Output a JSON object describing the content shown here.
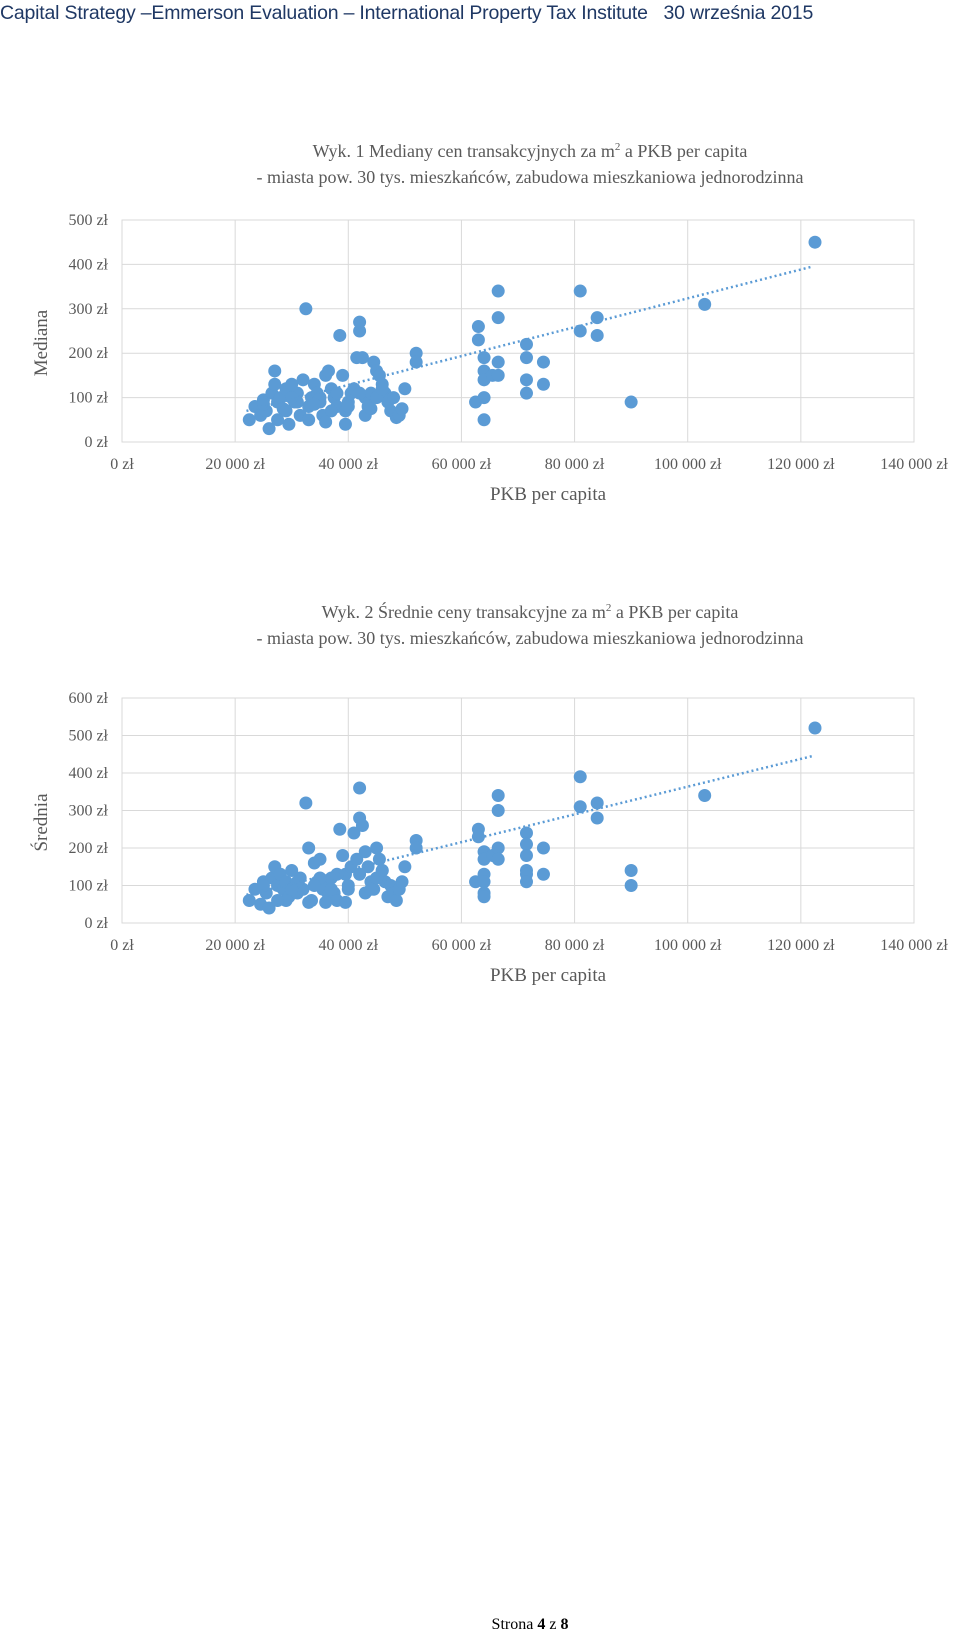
{
  "header": {
    "text": "Capital Strategy –Emmerson Evaluation – International Property Tax Institute",
    "date": "30 września 2015"
  },
  "footer": {
    "prefix": "Strona",
    "page": "4",
    "sep": "z",
    "total": "8"
  },
  "chart_data": [
    {
      "type": "scatter",
      "title_line1_pre": "Wyk. 1 Mediany cen transakcyjnych za m",
      "title_sup": "2",
      "title_line1_post": " a PKB per capita",
      "title_line2": "- miasta pow. 30 tys. mieszkańców, zabudowa mieszkaniowa jednorodzinna",
      "xlabel": "PKB per capita",
      "ylabel": "Mediana",
      "xlim": [
        0,
        140000
      ],
      "ylim": [
        0,
        500
      ],
      "xticks": [
        "0 zł",
        "20 000 zł",
        "40 000 zł",
        "60 000 zł",
        "80 000 zł",
        "100 000 zł",
        "120 000 zł",
        "140 000 zł"
      ],
      "yticks": [
        "0 zł",
        "100 zł",
        "200 zł",
        "300 zł",
        "400 zł",
        "500 zł"
      ],
      "grid": true,
      "trendline": {
        "style": "dotted",
        "x": [
          22000,
          122000
        ],
        "y": [
          70,
          395
        ]
      },
      "color": "#5b9bd5",
      "points": [
        [
          22500,
          50
        ],
        [
          23500,
          80
        ],
        [
          24500,
          60
        ],
        [
          25000,
          95
        ],
        [
          25500,
          70
        ],
        [
          26000,
          30
        ],
        [
          26500,
          110
        ],
        [
          27000,
          130
        ],
        [
          27000,
          160
        ],
        [
          27500,
          90
        ],
        [
          28000,
          100
        ],
        [
          28500,
          75
        ],
        [
          29000,
          120
        ],
        [
          29500,
          40
        ],
        [
          30000,
          130
        ],
        [
          30500,
          90
        ],
        [
          31000,
          110
        ],
        [
          31500,
          60
        ],
        [
          32000,
          140
        ],
        [
          32500,
          300
        ],
        [
          33000,
          80
        ],
        [
          33500,
          100
        ],
        [
          34000,
          130
        ],
        [
          34500,
          110
        ],
        [
          35000,
          90
        ],
        [
          35500,
          60
        ],
        [
          36000,
          150
        ],
        [
          36500,
          160
        ],
        [
          37000,
          120
        ],
        [
          37500,
          100
        ],
        [
          38000,
          80
        ],
        [
          38500,
          240
        ],
        [
          39000,
          150
        ],
        [
          39500,
          70
        ],
        [
          40000,
          90
        ],
        [
          40500,
          110
        ],
        [
          41000,
          120
        ],
        [
          41500,
          190
        ],
        [
          42000,
          250
        ],
        [
          42000,
          270
        ],
        [
          42500,
          190
        ],
        [
          43000,
          100
        ],
        [
          43500,
          80
        ],
        [
          44000,
          110
        ],
        [
          44500,
          180
        ],
        [
          45000,
          160
        ],
        [
          45500,
          150
        ],
        [
          46000,
          130
        ],
        [
          46500,
          110
        ],
        [
          47000,
          90
        ],
        [
          47500,
          70
        ],
        [
          48000,
          100
        ],
        [
          48500,
          55
        ],
        [
          49000,
          60
        ],
        [
          49500,
          75
        ],
        [
          50000,
          120
        ],
        [
          52000,
          200
        ],
        [
          52000,
          180
        ],
        [
          63000,
          260
        ],
        [
          63000,
          230
        ],
        [
          62500,
          90
        ],
        [
          64000,
          190
        ],
        [
          64000,
          160
        ],
        [
          64000,
          140
        ],
        [
          64000,
          100
        ],
        [
          64000,
          50
        ],
        [
          65500,
          150
        ],
        [
          66500,
          340
        ],
        [
          66500,
          280
        ],
        [
          66500,
          180
        ],
        [
          66500,
          150
        ],
        [
          71500,
          220
        ],
        [
          71500,
          190
        ],
        [
          71500,
          140
        ],
        [
          71500,
          110
        ],
        [
          74500,
          180
        ],
        [
          74500,
          130
        ],
        [
          81000,
          340
        ],
        [
          81000,
          250
        ],
        [
          84000,
          280
        ],
        [
          84000,
          240
        ],
        [
          90000,
          90
        ],
        [
          103000,
          310
        ],
        [
          122500,
          450
        ],
        [
          29000,
          70
        ],
        [
          31000,
          90
        ],
        [
          33000,
          50
        ],
        [
          35000,
          100
        ],
        [
          37000,
          70
        ],
        [
          39500,
          40
        ],
        [
          43000,
          60
        ],
        [
          45000,
          100
        ],
        [
          27500,
          50
        ],
        [
          25000,
          85
        ],
        [
          30000,
          100
        ],
        [
          34000,
          85
        ],
        [
          36000,
          45
        ],
        [
          38000,
          110
        ],
        [
          40000,
          80
        ],
        [
          42000,
          110
        ],
        [
          44000,
          75
        ],
        [
          46000,
          120
        ]
      ]
    },
    {
      "type": "scatter",
      "title_line1_pre": "Wyk. 2 Średnie ceny transakcyjne za m",
      "title_sup": "2",
      "title_line1_post": " a PKB per capita",
      "title_line2": "- miasta pow. 30 tys. mieszkańców, zabudowa mieszkaniowa jednorodzinna",
      "xlabel": "PKB per capita",
      "ylabel": "Średnia",
      "xlim": [
        0,
        140000
      ],
      "ylim": [
        0,
        600
      ],
      "xticks": [
        "0 zł",
        "20 000 zł",
        "40 000 zł",
        "60 000 zł",
        "80 000 zł",
        "100 000 zł",
        "120 000 zł",
        "140 000 zł"
      ],
      "yticks": [
        "0 zł",
        "100 zł",
        "200 zł",
        "300 zł",
        "400 zł",
        "500 zł",
        "600 zł"
      ],
      "grid": true,
      "trendline": {
        "style": "dotted",
        "x": [
          22000,
          122000
        ],
        "y": [
          75,
          445
        ]
      },
      "color": "#5b9bd5",
      "points": [
        [
          22500,
          60
        ],
        [
          23500,
          90
        ],
        [
          24500,
          50
        ],
        [
          25000,
          110
        ],
        [
          25500,
          80
        ],
        [
          26000,
          40
        ],
        [
          26500,
          120
        ],
        [
          27000,
          150
        ],
        [
          27500,
          100
        ],
        [
          28000,
          130
        ],
        [
          28500,
          90
        ],
        [
          29000,
          110
        ],
        [
          29500,
          70
        ],
        [
          30000,
          140
        ],
        [
          30500,
          100
        ],
        [
          31000,
          80
        ],
        [
          31500,
          120
        ],
        [
          32000,
          90
        ],
        [
          32500,
          320
        ],
        [
          33000,
          200
        ],
        [
          33500,
          60
        ],
        [
          34000,
          160
        ],
        [
          34500,
          110
        ],
        [
          35000,
          170
        ],
        [
          35500,
          90
        ],
        [
          36000,
          100
        ],
        [
          36500,
          75
        ],
        [
          37000,
          120
        ],
        [
          37500,
          80
        ],
        [
          38000,
          60
        ],
        [
          38500,
          250
        ],
        [
          39000,
          180
        ],
        [
          39500,
          130
        ],
        [
          40000,
          90
        ],
        [
          40500,
          150
        ],
        [
          41000,
          240
        ],
        [
          41500,
          170
        ],
        [
          42000,
          360
        ],
        [
          42000,
          280
        ],
        [
          42500,
          260
        ],
        [
          43000,
          190
        ],
        [
          43500,
          150
        ],
        [
          44000,
          110
        ],
        [
          44500,
          90
        ],
        [
          45000,
          200
        ],
        [
          45500,
          170
        ],
        [
          46000,
          140
        ],
        [
          46500,
          110
        ],
        [
          47000,
          70
        ],
        [
          47500,
          100
        ],
        [
          48000,
          80
        ],
        [
          48500,
          60
        ],
        [
          49000,
          90
        ],
        [
          49500,
          110
        ],
        [
          50000,
          150
        ],
        [
          52000,
          220
        ],
        [
          52000,
          200
        ],
        [
          63000,
          250
        ],
        [
          63000,
          230
        ],
        [
          62500,
          110
        ],
        [
          64000,
          190
        ],
        [
          64000,
          170
        ],
        [
          64000,
          130
        ],
        [
          64000,
          110
        ],
        [
          64000,
          80
        ],
        [
          64000,
          70
        ],
        [
          65500,
          180
        ],
        [
          66500,
          340
        ],
        [
          66500,
          300
        ],
        [
          66500,
          200
        ],
        [
          66500,
          170
        ],
        [
          71500,
          240
        ],
        [
          71500,
          210
        ],
        [
          71500,
          180
        ],
        [
          71500,
          140
        ],
        [
          71500,
          130
        ],
        [
          71500,
          110
        ],
        [
          74500,
          200
        ],
        [
          74500,
          130
        ],
        [
          81000,
          390
        ],
        [
          81000,
          310
        ],
        [
          84000,
          320
        ],
        [
          84000,
          280
        ],
        [
          90000,
          140
        ],
        [
          90000,
          100
        ],
        [
          103000,
          340
        ],
        [
          122500,
          520
        ],
        [
          29000,
          60
        ],
        [
          31000,
          110
        ],
        [
          33000,
          55
        ],
        [
          35000,
          120
        ],
        [
          37000,
          90
        ],
        [
          39500,
          55
        ],
        [
          43000,
          80
        ],
        [
          45000,
          120
        ],
        [
          27500,
          60
        ],
        [
          25000,
          100
        ],
        [
          30000,
          90
        ],
        [
          34000,
          100
        ],
        [
          36000,
          55
        ],
        [
          38000,
          130
        ],
        [
          40000,
          100
        ],
        [
          42000,
          130
        ],
        [
          44000,
          90
        ],
        [
          46000,
          140
        ]
      ]
    }
  ]
}
